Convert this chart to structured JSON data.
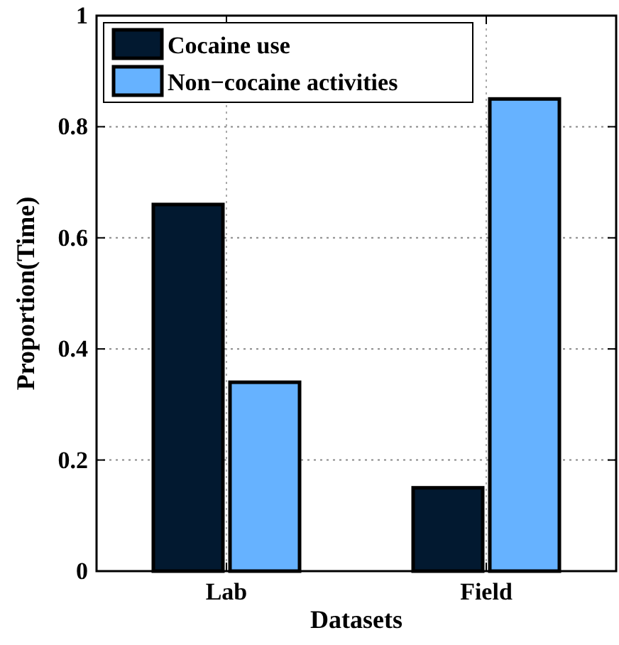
{
  "chart_data": {
    "type": "bar",
    "xlabel": "Datasets",
    "ylabel": "Proportion(Time)",
    "categories": [
      "Lab",
      "Field"
    ],
    "series": [
      {
        "name": "Cocaine use",
        "color": "#021930",
        "values": [
          0.66,
          0.15
        ]
      },
      {
        "name": "Non−cocaine activities",
        "color": "#66b2ff",
        "values": [
          0.34,
          0.85
        ]
      }
    ],
    "ylim": [
      0,
      1
    ],
    "yticks": [
      0,
      0.2,
      0.4,
      0.6,
      0.8,
      1
    ],
    "grid": true,
    "legend": "top left"
  }
}
